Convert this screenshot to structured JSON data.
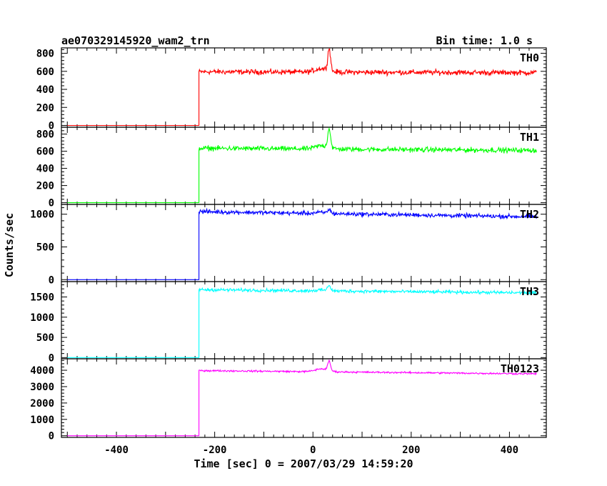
{
  "header": {
    "title": "ae070329145920_wam2_trn",
    "bin_time": "Bin time: 1.0 s"
  },
  "chart_data": {
    "type": "line",
    "xlabel": "Time [sec] 0 = 2007/03/29 14:59:20",
    "ylabel": "Counts/sec",
    "xlim": [
      -512,
      475
    ],
    "x_ticks": [
      -400,
      -200,
      0,
      200,
      400
    ],
    "signal": {
      "step_time": -232,
      "burst_time": 33,
      "pre_end": 455
    },
    "panels": [
      {
        "name": "TH0",
        "color": "#ff0000",
        "ylim": [
          -20,
          860
        ],
        "y_ticks": [
          0,
          200,
          400,
          600,
          800
        ],
        "pre": 0,
        "level_start": 595,
        "level_end": 585,
        "noise": 25,
        "bump": 40,
        "peak": 840
      },
      {
        "name": "TH1",
        "color": "#00ff00",
        "ylim": [
          -20,
          880
        ],
        "y_ticks": [
          0,
          200,
          400,
          600,
          800
        ],
        "pre": 0,
        "level_start": 635,
        "level_end": 610,
        "noise": 25,
        "bump": 40,
        "peak": 860
      },
      {
        "name": "TH2",
        "color": "#0000ff",
        "ylim": [
          -30,
          1150
        ],
        "y_ticks": [
          0,
          500,
          1000
        ],
        "pre": 0,
        "level_start": 1040,
        "level_end": 960,
        "noise": 28,
        "bump": 15,
        "peak": 1100
      },
      {
        "name": "TH3",
        "color": "#00ffff",
        "ylim": [
          -30,
          1880
        ],
        "y_ticks": [
          0,
          500,
          1000,
          1500
        ],
        "pre": 0,
        "level_start": 1680,
        "level_end": 1600,
        "noise": 35,
        "bump": 20,
        "peak": 1820
      },
      {
        "name": "TH0123",
        "color": "#ff00ff",
        "ylim": [
          -100,
          4700
        ],
        "y_ticks": [
          0,
          1000,
          2000,
          3000,
          4000
        ],
        "pre": 0,
        "level_start": 3980,
        "level_end": 3780,
        "noise": 45,
        "bump": 180,
        "peak": 4550
      }
    ]
  }
}
